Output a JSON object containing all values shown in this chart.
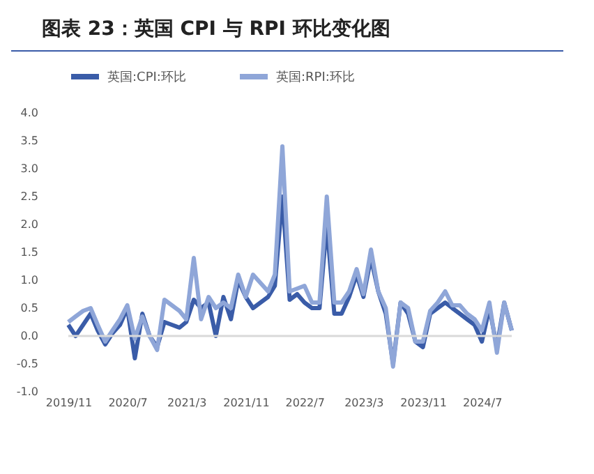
{
  "chart_data": {
    "type": "line",
    "title": "图表 23：英国 CPI 与 RPI 环比变化图",
    "x": [
      "2019-11",
      "2019-12",
      "2020-01",
      "2020-02",
      "2020-03",
      "2020-04",
      "2020-05",
      "2020-06",
      "2020-07",
      "2020-08",
      "2020-09",
      "2020-10",
      "2020-11",
      "2020-12",
      "2021-01",
      "2021-02",
      "2021-03",
      "2021-04",
      "2021-05",
      "2021-06",
      "2021-07",
      "2021-08",
      "2021-09",
      "2021-10",
      "2021-11",
      "2021-12",
      "2022-01",
      "2022-02",
      "2022-03",
      "2022-04",
      "2022-05",
      "2022-06",
      "2022-07",
      "2022-08",
      "2022-09",
      "2022-10",
      "2022-11",
      "2022-12",
      "2023-01",
      "2023-02",
      "2023-03",
      "2023-04",
      "2023-05",
      "2023-06",
      "2023-07",
      "2023-08",
      "2023-09",
      "2023-10",
      "2023-11",
      "2023-12",
      "2024-01",
      "2024-02",
      "2024-03",
      "2024-04",
      "2024-05",
      "2024-06",
      "2024-07",
      "2024-08",
      "2024-09",
      "2024-10",
      "2024-11"
    ],
    "series": [
      {
        "name": "英国:CPI:环比",
        "color": "#3a5ca8",
        "values": [
          0.2,
          0.0,
          0.2,
          0.4,
          0.1,
          -0.15,
          0.05,
          0.2,
          0.5,
          -0.4,
          0.4,
          0.0,
          -0.2,
          0.25,
          0.2,
          0.15,
          0.25,
          0.65,
          0.5,
          0.6,
          0.0,
          0.7,
          0.3,
          1.0,
          0.7,
          0.5,
          0.6,
          0.7,
          0.9,
          2.5,
          0.65,
          0.75,
          0.6,
          0.5,
          0.5,
          2.0,
          0.4,
          0.4,
          0.7,
          1.1,
          0.7,
          1.4,
          0.8,
          0.4,
          -0.5,
          0.6,
          0.4,
          -0.1,
          -0.2,
          0.4,
          0.5,
          0.6,
          0.5,
          0.4,
          0.3,
          0.2,
          -0.1,
          0.5,
          -0.2,
          0.6,
          0.1
        ]
      },
      {
        "name": "英国:RPI:环比",
        "color": "#8fa6d8",
        "values": [
          0.25,
          0.35,
          0.45,
          0.5,
          0.2,
          -0.1,
          0.1,
          0.3,
          0.55,
          -0.05,
          0.35,
          0.0,
          -0.25,
          0.65,
          0.55,
          0.45,
          0.3,
          1.4,
          0.3,
          0.7,
          0.5,
          0.6,
          0.5,
          1.1,
          0.7,
          1.1,
          0.95,
          0.8,
          1.1,
          3.4,
          0.8,
          0.85,
          0.9,
          0.6,
          0.6,
          2.5,
          0.6,
          0.6,
          0.8,
          1.2,
          0.75,
          1.55,
          0.8,
          0.5,
          -0.55,
          0.6,
          0.5,
          -0.1,
          -0.1,
          0.45,
          0.6,
          0.8,
          0.55,
          0.55,
          0.4,
          0.3,
          0.1,
          0.6,
          -0.3,
          0.6,
          0.1
        ]
      }
    ],
    "xlim": [
      "2019-11",
      "2024-11"
    ],
    "xticks": [
      {
        "value": "2019-11",
        "label": "2019/11"
      },
      {
        "value": "2020-07",
        "label": "2020/7"
      },
      {
        "value": "2021-03",
        "label": "2021/3"
      },
      {
        "value": "2021-11",
        "label": "2021/11"
      },
      {
        "value": "2022-07",
        "label": "2022/7"
      },
      {
        "value": "2023-03",
        "label": "2023/3"
      },
      {
        "value": "2023-11",
        "label": "2023/11"
      },
      {
        "value": "2024-07",
        "label": "2024/7"
      }
    ],
    "ylim": [
      -1,
      4
    ],
    "yticks": [
      {
        "value": -1,
        "label": "-1.0"
      },
      {
        "value": -0.5,
        "label": "-0.5"
      },
      {
        "value": 0,
        "label": "0.0"
      },
      {
        "value": 0.5,
        "label": "0.5"
      },
      {
        "value": 1,
        "label": "1.0"
      },
      {
        "value": 1.5,
        "label": "1.5"
      },
      {
        "value": 2,
        "label": "2.0"
      },
      {
        "value": 2.5,
        "label": "2.5"
      },
      {
        "value": 3,
        "label": "3.0"
      },
      {
        "value": 3.5,
        "label": "3.5"
      },
      {
        "value": 4,
        "label": "4.0"
      }
    ],
    "ref_lines": [
      {
        "axis": "y",
        "value": 0,
        "color": "#d9d9d9"
      }
    ],
    "grid": false,
    "legend": "top",
    "line_style": "solid"
  }
}
